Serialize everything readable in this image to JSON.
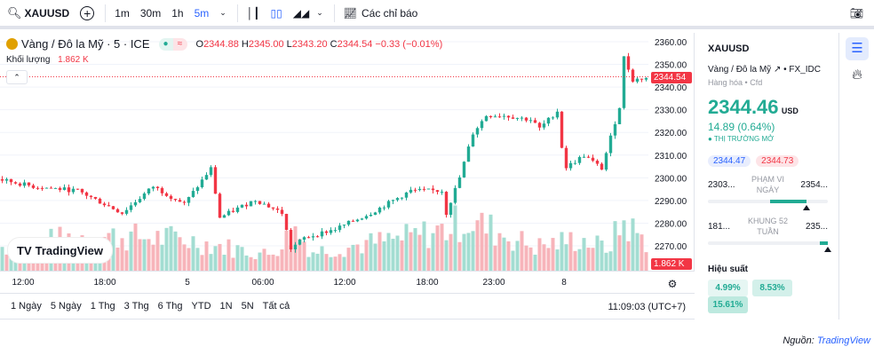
{
  "toolbar": {
    "symbol": "XAUUSD",
    "intervals": [
      "1m",
      "30m",
      "1h",
      "5m"
    ],
    "indicators": "Các chỉ báo"
  },
  "legend": {
    "title": "Vàng / Đô la Mỹ · 5 · ICE",
    "o_label": "O",
    "o": "2344.88",
    "h_label": "H",
    "h": "2345.00",
    "l_label": "L",
    "l": "2343.20",
    "c_label": "C",
    "c": "2344.54",
    "change": "−0.33 (−0.01%)",
    "volume_label": "Khối lượng",
    "volume": "1.862 K"
  },
  "brand": "TradingView",
  "price_tag": "2344.54",
  "volume_tag": "1.862 K",
  "time_labels": [
    "12:00",
    "18:00",
    "5",
    "06:00",
    "12:00",
    "18:00",
    "23:00",
    "8"
  ],
  "ranges": [
    "1 Ngày",
    "5 Ngày",
    "1 Thg",
    "3 Thg",
    "6 Thg",
    "YTD",
    "1N",
    "5N",
    "Tất cả"
  ],
  "clock": "11:09:03 (UTC+7)",
  "panel": {
    "symbol": "XAUUSD",
    "name": "Vàng / Đô la Mỹ",
    "exchange": "FX_IDC",
    "category": "Hàng hóa",
    "type": "Cfd",
    "price": "2344.46",
    "currency": "USD",
    "change": "14.89 (0.64%)",
    "status": "THỊ TRƯỜNG MỞ",
    "bid": "2344.47",
    "ask": "2344.73",
    "day_low": "2303...",
    "day_label_1": "PHẠM VI",
    "day_label_2": "NGÀY",
    "day_high": "2354...",
    "wk_low": "181...",
    "wk_label_1": "KHUNG 52",
    "wk_label_2": "TUẦN",
    "wk_high": "235...",
    "day_range_fill": [
      0.52,
      0.82
    ],
    "wk_range_fill": [
      0.93,
      1.0
    ],
    "perf_title": "Hiệu suất",
    "perf": [
      "4.99%",
      "8.53%",
      "15.61%"
    ]
  },
  "source_label": "Nguồn:",
  "source": "TradingView",
  "colors": {
    "up": "#22ab94",
    "down": "#f23645",
    "accent": "#2962ff"
  },
  "chart_data": {
    "type": "candlestick",
    "ylim": [
      2260,
      2362
    ],
    "y_ticks": [
      2360,
      2350,
      2340,
      2330,
      2320,
      2310,
      2300,
      2290,
      2280,
      2270
    ],
    "last_price": 2344.54,
    "candle_count": 146,
    "anchors_index": [
      0,
      8,
      18,
      28,
      35,
      42,
      48,
      50,
      58,
      64,
      66,
      69,
      76,
      84,
      93,
      100,
      101,
      104,
      107,
      110,
      114,
      120,
      122,
      126,
      127.6,
      132,
      136,
      140,
      141,
      143,
      146
    ],
    "anchors_price": [
      2299.4,
      2296.2,
      2294.3,
      2284.5,
      2296.2,
      2288.4,
      2304.1,
      2282.5,
      2290.4,
      2284.5,
      2268.8,
      2273.5,
      2277.4,
      2284.5,
      2294.3,
      2294.3,
      2284.5,
      2300.1,
      2319.7,
      2327.5,
      2327.5,
      2325.6,
      2321.7,
      2329.5,
      2304.1,
      2309.9,
      2304.1,
      2331.4,
      2353,
      2343.2,
      2344
    ],
    "volume_anchors_index": [
      0,
      20,
      40,
      60,
      66,
      70,
      90,
      100,
      104,
      110,
      120,
      130,
      136,
      140,
      146
    ],
    "volume_anchors": [
      1.5,
      2.2,
      2.0,
      1.0,
      2.5,
      1.2,
      2.0,
      2.6,
      3.2,
      2.6,
      1.5,
      2.0,
      1.4,
      3.0,
      1.6
    ]
  }
}
